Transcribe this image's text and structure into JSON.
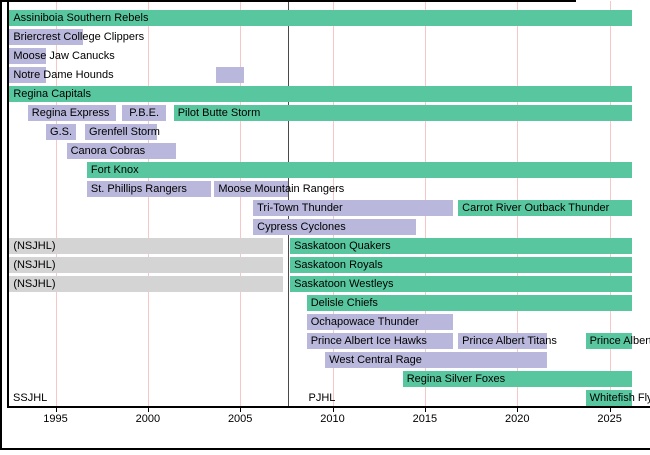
{
  "colors": {
    "green": "#58C7A0",
    "purple": "#B9B8DC",
    "gray": "#D4D4D4",
    "gridline": "#F7C6C6",
    "divider": "#4A4A4A",
    "axis": "#000000",
    "text": "#000000"
  },
  "chart_data": {
    "type": "gantt-timeline",
    "title": "",
    "x_axis": {
      "ticks": [
        1995,
        2000,
        2005,
        2010,
        2015,
        2020,
        2025
      ],
      "range": [
        1992.4,
        2026.3
      ],
      "grid": true
    },
    "divider_year": 2007.6,
    "era_labels": [
      {
        "label": "SSJHL",
        "year": 1992.7
      },
      {
        "label": "PJHL",
        "year": 2008.7
      }
    ],
    "rows": [
      {
        "bars": [
          {
            "label": "Assiniboia Southern Rebels",
            "start": 1992.5,
            "end": 2026.2,
            "color": "green"
          }
        ]
      },
      {
        "bars": [
          {
            "label": "Briercrest College Clippers",
            "start": 1992.5,
            "end": 1996.5,
            "color": "purple"
          }
        ]
      },
      {
        "bars": [
          {
            "label": "Moose Jaw Canucks",
            "start": 1992.5,
            "end": 1994.5,
            "color": "purple"
          }
        ]
      },
      {
        "bars": [
          {
            "label": "Notre Dame Hounds",
            "start": 1992.5,
            "end": 1994.5,
            "color": "purple"
          },
          {
            "label": "",
            "start": 2003.7,
            "end": 2005.2,
            "color": "purple"
          }
        ]
      },
      {
        "bars": [
          {
            "label": "Regina Capitals",
            "start": 1992.5,
            "end": 2026.2,
            "color": "green"
          }
        ]
      },
      {
        "bars": [
          {
            "label": "Regina Express",
            "start": 1993.5,
            "end": 1998.3,
            "color": "purple"
          },
          {
            "label": "P.B.E.",
            "start": 1998.6,
            "end": 2001.0,
            "color": "purple",
            "align": "center"
          },
          {
            "label": "Pilot Butte Storm",
            "start": 2001.4,
            "end": 2026.2,
            "color": "green"
          }
        ]
      },
      {
        "bars": [
          {
            "label": "G.S.",
            "start": 1994.5,
            "end": 1996.1,
            "color": "purple",
            "align": "center"
          },
          {
            "label": "Grenfell Storm",
            "start": 1996.6,
            "end": 2000.5,
            "color": "purple"
          }
        ]
      },
      {
        "bars": [
          {
            "label": "Canora Cobras",
            "start": 1995.6,
            "end": 2001.5,
            "color": "purple"
          }
        ]
      },
      {
        "bars": [
          {
            "label": "Fort Knox",
            "start": 1996.7,
            "end": 2026.2,
            "color": "green"
          }
        ]
      },
      {
        "bars": [
          {
            "label": "St. Phillips Rangers",
            "start": 1996.7,
            "end": 2003.4,
            "color": "purple"
          },
          {
            "label": "Moose Mountain Rangers",
            "start": 2003.6,
            "end": 2007.6,
            "color": "purple"
          }
        ]
      },
      {
        "bars": [
          {
            "label": "Tri-Town Thunder",
            "start": 2005.7,
            "end": 2016.5,
            "color": "purple"
          },
          {
            "label": "Carrot River Outback Thunder",
            "start": 2016.8,
            "end": 2026.2,
            "color": "green"
          }
        ]
      },
      {
        "bars": [
          {
            "label": "Cypress Cyclones",
            "start": 2005.7,
            "end": 2014.5,
            "color": "purple"
          }
        ]
      },
      {
        "bars": [
          {
            "label": "(NSJHL)",
            "start": 1992.5,
            "end": 2007.3,
            "color": "gray"
          },
          {
            "label": "Saskatoon Quakers",
            "start": 2007.7,
            "end": 2026.2,
            "color": "green"
          }
        ]
      },
      {
        "bars": [
          {
            "label": "(NSJHL)",
            "start": 1992.5,
            "end": 2007.3,
            "color": "gray"
          },
          {
            "label": "Saskatoon Royals",
            "start": 2007.7,
            "end": 2026.2,
            "color": "green"
          }
        ]
      },
      {
        "bars": [
          {
            "label": "(NSJHL)",
            "start": 1992.5,
            "end": 2007.3,
            "color": "gray"
          },
          {
            "label": "Saskatoon Westleys",
            "start": 2007.7,
            "end": 2026.2,
            "color": "green"
          }
        ]
      },
      {
        "bars": [
          {
            "label": "Delisle Chiefs",
            "start": 2008.6,
            "end": 2026.2,
            "color": "green"
          }
        ]
      },
      {
        "bars": [
          {
            "label": "Ochapowace Thunder",
            "start": 2008.6,
            "end": 2016.5,
            "color": "purple"
          }
        ]
      },
      {
        "bars": [
          {
            "label": "Prince Albert Ice Hawks",
            "start": 2008.6,
            "end": 2016.5,
            "color": "purple"
          },
          {
            "label": "Prince Albert Titans",
            "start": 2016.8,
            "end": 2021.6,
            "color": "purple"
          },
          {
            "label": "Prince Albert",
            "start": 2023.7,
            "end": 2026.2,
            "color": "green"
          }
        ]
      },
      {
        "bars": [
          {
            "label": "West Central Rage",
            "start": 2009.6,
            "end": 2021.6,
            "color": "purple"
          }
        ]
      },
      {
        "bars": [
          {
            "label": "Regina Silver Foxes",
            "start": 2013.8,
            "end": 2026.2,
            "color": "green"
          }
        ]
      },
      {
        "bars": [
          {
            "label": "Whitefish Fly",
            "start": 2023.7,
            "end": 2026.2,
            "color": "green"
          }
        ]
      }
    ]
  }
}
